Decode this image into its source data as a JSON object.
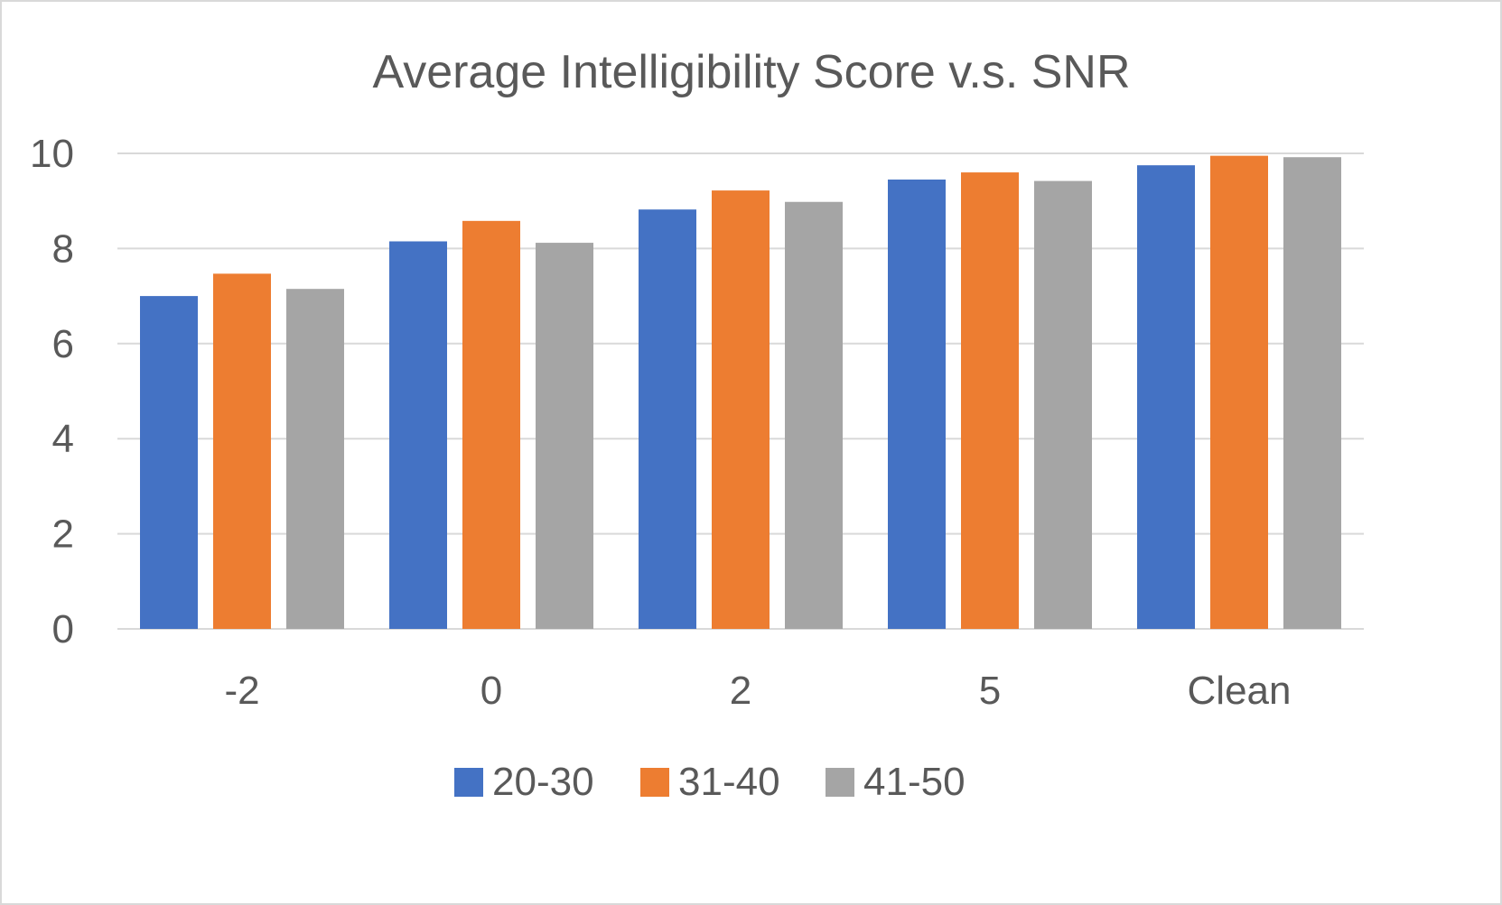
{
  "chart_data": {
    "type": "bar",
    "title": "Average Intelligibility Score v.s. SNR",
    "xlabel": "",
    "ylabel": "",
    "categories": [
      "-2",
      "0",
      "2",
      "5",
      "Clean"
    ],
    "series": [
      {
        "name": "20-30",
        "color": "#4472c4",
        "values": [
          7.0,
          8.15,
          8.82,
          9.45,
          9.75
        ]
      },
      {
        "name": "31-40",
        "color": "#ed7d31",
        "values": [
          7.47,
          8.58,
          9.22,
          9.6,
          9.95
        ]
      },
      {
        "name": "41-50",
        "color": "#a5a5a5",
        "values": [
          7.15,
          8.12,
          8.98,
          9.42,
          9.92
        ]
      }
    ],
    "ylim": [
      0,
      10
    ],
    "yticks": [
      "0",
      "2",
      "4",
      "6",
      "8",
      "10"
    ],
    "grid": true,
    "legend_position": "bottom"
  }
}
